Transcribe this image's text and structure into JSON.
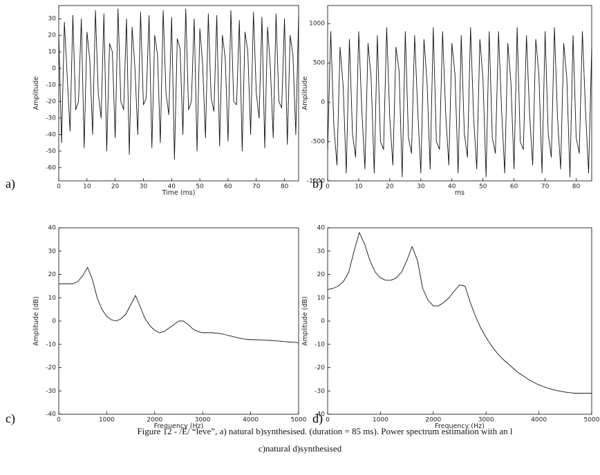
{
  "chart_data": [
    {
      "type": "line",
      "panel": "a)",
      "xlabel": "Time (ms)",
      "ylabel": "Amplitude",
      "x": [
        0,
        1,
        2,
        3,
        4,
        5,
        6,
        7,
        8,
        9,
        10,
        11,
        12,
        13,
        14,
        15,
        16,
        17,
        18,
        19,
        20,
        21,
        22,
        23,
        24,
        25,
        26,
        27,
        28,
        29,
        30,
        31,
        32,
        33,
        34,
        35,
        36,
        37,
        38,
        39,
        40,
        41,
        42,
        43,
        44,
        45,
        46,
        47,
        48,
        49,
        50,
        51,
        52,
        53,
        54,
        55,
        56,
        57,
        58,
        59,
        60,
        61,
        62,
        63,
        64,
        65,
        66,
        67,
        68,
        69,
        70,
        71,
        72,
        73,
        74,
        75,
        76,
        77,
        78,
        79,
        80,
        81,
        82,
        83,
        84,
        85
      ],
      "values": [
        20,
        -45,
        28,
        -5,
        -38,
        32,
        -25,
        -20,
        30,
        -48,
        22,
        5,
        -40,
        35,
        -15,
        -30,
        33,
        -50,
        15,
        10,
        -42,
        36,
        -20,
        -25,
        30,
        -52,
        25,
        0,
        -40,
        34,
        -22,
        -18,
        32,
        -48,
        20,
        8,
        -45,
        35,
        -15,
        -28,
        31,
        -55,
        18,
        12,
        -40,
        36,
        -25,
        -20,
        30,
        -50,
        24,
        2,
        -42,
        33,
        -18,
        -26,
        32,
        -47,
        20,
        6,
        -44,
        35,
        -20,
        -22,
        29,
        -50,
        22,
        10,
        -40,
        34,
        -15,
        -30,
        31,
        -48,
        25,
        0,
        -42,
        33,
        -20,
        -24,
        30,
        -46,
        20,
        8,
        -40,
        32
      ],
      "color": "#111111",
      "xlim": [
        0,
        85
      ],
      "xticks": [
        0,
        10,
        20,
        30,
        40,
        50,
        60,
        70,
        80
      ],
      "ylim": [
        -68,
        38
      ],
      "yticks": [
        -60,
        -50,
        -40,
        -30,
        -20,
        -10,
        0,
        10,
        20,
        30
      ]
    },
    {
      "type": "line",
      "panel": "b)",
      "xlabel": "ms",
      "ylabel": "Amplitude",
      "x": [
        0,
        1,
        2,
        3,
        4,
        5,
        6,
        7,
        8,
        9,
        10,
        11,
        12,
        13,
        14,
        15,
        16,
        17,
        18,
        19,
        20,
        21,
        22,
        23,
        24,
        25,
        26,
        27,
        28,
        29,
        30,
        31,
        32,
        33,
        34,
        35,
        36,
        37,
        38,
        39,
        40,
        41,
        42,
        43,
        44,
        45,
        46,
        47,
        48,
        49,
        50,
        51,
        52,
        53,
        54,
        55,
        56,
        57,
        58,
        59,
        60,
        61,
        62,
        63,
        64,
        65,
        66,
        67,
        68,
        69,
        70,
        71,
        72,
        73,
        74,
        75,
        76,
        77,
        78,
        79,
        80,
        81,
        82,
        83,
        84,
        85
      ],
      "values": [
        -600,
        900,
        -300,
        -800,
        700,
        200,
        -900,
        800,
        -400,
        -700,
        900,
        -100,
        -850,
        750,
        300,
        -900,
        850,
        -500,
        -600,
        950,
        -200,
        -800,
        700,
        400,
        -950,
        900,
        -450,
        -650,
        850,
        -100,
        -900,
        800,
        250,
        -850,
        950,
        -500,
        -600,
        900,
        -150,
        -800,
        750,
        350,
        -900,
        850,
        -400,
        -700,
        950,
        -200,
        -850,
        800,
        300,
        -950,
        900,
        -450,
        -650,
        900,
        -100,
        -900,
        750,
        250,
        -850,
        950,
        -500,
        -600,
        850,
        -150,
        -800,
        800,
        350,
        -900,
        900,
        -400,
        -700,
        950,
        -200,
        -850,
        750,
        300,
        -950,
        850,
        -450,
        -650,
        900,
        -100,
        -900,
        700
      ],
      "color": "#111111",
      "xlim": [
        0,
        85
      ],
      "xticks": [
        0,
        10,
        20,
        30,
        40,
        50,
        60,
        70,
        80
      ],
      "ylim": [
        -1000,
        1230
      ],
      "yticks": [
        -1000,
        -500,
        0,
        500,
        1000
      ]
    },
    {
      "type": "line",
      "panel": "c)",
      "xlabel": "Frequency (Hz)",
      "ylabel": "Amplitude (dB)",
      "x": [
        0,
        100,
        200,
        300,
        400,
        500,
        600,
        700,
        800,
        900,
        1000,
        1100,
        1200,
        1300,
        1400,
        1500,
        1600,
        1700,
        1800,
        1900,
        2000,
        2100,
        2200,
        2300,
        2400,
        2500,
        2600,
        2700,
        2800,
        2900,
        3000,
        3100,
        3200,
        3300,
        3400,
        3500,
        3600,
        3700,
        3800,
        3900,
        4000,
        4100,
        4200,
        4300,
        4400,
        4500,
        4600,
        4700,
        4800,
        4900,
        5000
      ],
      "values": [
        16,
        16,
        16,
        16,
        17,
        19.5,
        23,
        18,
        10,
        5,
        2,
        0.5,
        0,
        1,
        3,
        7,
        11,
        6,
        1,
        -2,
        -4,
        -5,
        -4.5,
        -3,
        -1.5,
        0,
        0,
        -1.5,
        -3.5,
        -4.5,
        -5,
        -5,
        -5,
        -5.2,
        -5.5,
        -6,
        -6.5,
        -7,
        -7.5,
        -7.8,
        -8,
        -8,
        -8.1,
        -8.2,
        -8.3,
        -8.5,
        -8.6,
        -8.8,
        -9,
        -9.1,
        -9.3
      ],
      "color": "#111111",
      "xlim": [
        0,
        5000
      ],
      "xticks": [
        0,
        1000,
        2000,
        3000,
        4000,
        5000
      ],
      "ylim": [
        -40,
        40
      ],
      "yticks": [
        -40,
        -30,
        -20,
        -10,
        0,
        10,
        20,
        30,
        40
      ]
    },
    {
      "type": "line",
      "panel": "d)",
      "xlabel": "Frequency (Hz)",
      "ylabel": "Amplitude (dB)",
      "x": [
        0,
        100,
        200,
        300,
        400,
        500,
        600,
        700,
        800,
        900,
        1000,
        1100,
        1200,
        1300,
        1400,
        1500,
        1600,
        1700,
        1800,
        1900,
        2000,
        2100,
        2200,
        2300,
        2400,
        2500,
        2600,
        2700,
        2800,
        2900,
        3000,
        3100,
        3200,
        3300,
        3400,
        3500,
        3600,
        3700,
        3800,
        3900,
        4000,
        4100,
        4200,
        4300,
        4400,
        4500,
        4600,
        4700,
        4800,
        4900,
        5000
      ],
      "values": [
        13.5,
        14,
        15,
        17,
        21,
        30,
        38,
        33,
        26,
        21,
        18.5,
        17.5,
        17.5,
        18.5,
        21,
        26,
        32,
        26,
        14,
        9,
        6.5,
        6.5,
        8,
        10,
        13,
        15.5,
        15,
        8,
        2,
        -3,
        -7,
        -10.5,
        -13.5,
        -16,
        -18,
        -20,
        -22,
        -23.5,
        -25,
        -26.3,
        -27.4,
        -28.3,
        -29,
        -29.6,
        -30.1,
        -30.5,
        -30.8,
        -31,
        -31,
        -31,
        -31
      ],
      "color": "#111111",
      "xlim": [
        0,
        5000
      ],
      "xticks": [
        0,
        1000,
        2000,
        3000,
        4000,
        5000
      ],
      "ylim": [
        -40,
        40
      ],
      "yticks": [
        -40,
        -30,
        -20,
        -10,
        0,
        10,
        20,
        30,
        40
      ]
    }
  ],
  "caption": [
    "Figure 12 - /E/ “leve”, a) natural b)synthesised. (duration = 85 ms). Power spectrum estimation with an l",
    "c)natural d)synthesised"
  ]
}
